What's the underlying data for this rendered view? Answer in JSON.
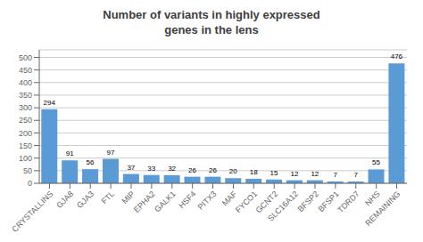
{
  "chart_data": {
    "type": "bar",
    "title": "Number of variants in highly expressed\ngenes in the lens",
    "categories": [
      "CRYSTALLINS",
      "GJA8",
      "GJA3",
      "FTL",
      "MIP",
      "EPHA2",
      "GALK1",
      "HSF4",
      "PITX3",
      "MAF",
      "FYCO1",
      "GCNT2",
      "SLC16A12",
      "BFSP2",
      "BFSP1",
      "TDRD7",
      "NHS",
      "REMAINING"
    ],
    "values": [
      294,
      91,
      56,
      97,
      37,
      33,
      32,
      26,
      26,
      20,
      18,
      15,
      12,
      12,
      7,
      7,
      55,
      476
    ],
    "color": "#5B9BD5",
    "ylim": [
      0,
      530
    ],
    "yticks": [
      0,
      50,
      100,
      150,
      200,
      250,
      300,
      350,
      400,
      450,
      500
    ],
    "grid": true,
    "data_labels": true
  }
}
